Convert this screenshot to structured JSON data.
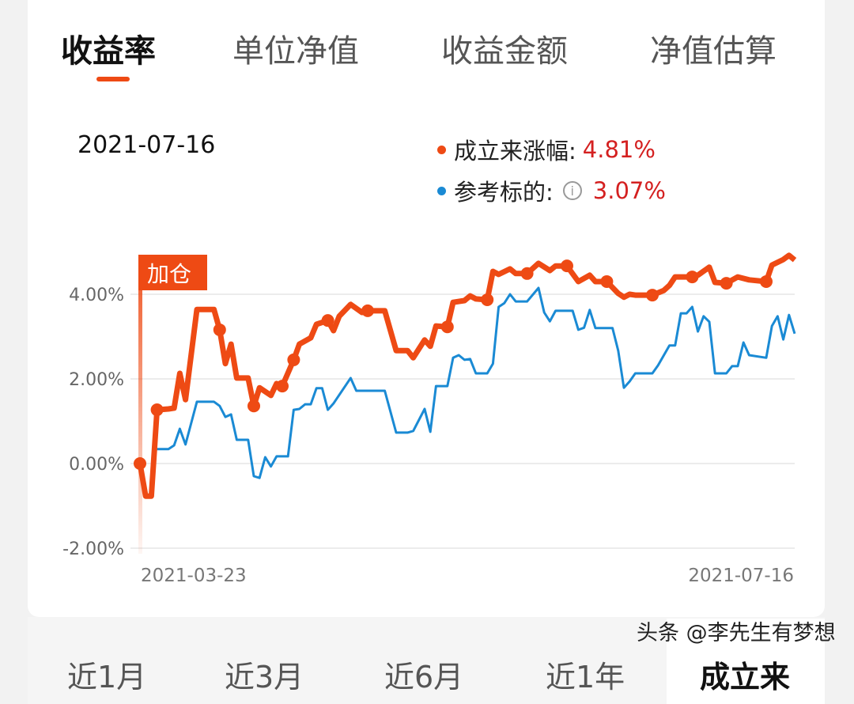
{
  "tabs": [
    "收益率",
    "单位净值",
    "收益金额",
    "净值估算"
  ],
  "active_tab": 0,
  "selected_date": "2021-07-16",
  "legend": [
    {
      "label": "成立来涨幅:",
      "value": "4.81%",
      "color": "#ee4a14"
    },
    {
      "label": "参考标的:",
      "value": "3.07%",
      "color": "#1a8ad4",
      "info_icon": "info-circle-icon"
    }
  ],
  "annotation": {
    "label": "加仓",
    "date": "2021-03-23"
  },
  "chart_data": {
    "type": "line",
    "x_range": [
      "2021-03-23",
      "2021-07-16"
    ],
    "x_ticks": [
      "2021-03-23",
      "2021-07-16"
    ],
    "y_ticks": [
      "4.00%",
      "2.00%",
      "0.00%",
      "-2.00%"
    ],
    "ylim": [
      -2,
      4.5
    ],
    "grid": true,
    "series": [
      {
        "name": "成立来涨幅",
        "color": "#ee4a14",
        "points": [
          [
            "2021-03-23",
            0
          ],
          [
            "2021-03-24",
            -0.77
          ],
          [
            "2021-03-25",
            -0.77
          ],
          [
            "2021-03-26",
            1.27
          ],
          [
            "2021-03-28",
            1.29
          ],
          [
            "2021-03-29",
            1.31
          ],
          [
            "2021-03-30",
            2.13
          ],
          [
            "2021-03-31",
            1.51
          ],
          [
            "2021-04-02",
            3.64
          ],
          [
            "2021-04-05",
            3.64
          ],
          [
            "2021-04-06",
            3.16
          ],
          [
            "2021-04-07",
            2.36
          ],
          [
            "2021-04-08",
            2.82
          ],
          [
            "2021-04-09",
            2.02
          ],
          [
            "2021-04-11",
            2.02
          ],
          [
            "2021-04-12",
            1.36
          ],
          [
            "2021-04-13",
            1.79
          ],
          [
            "2021-04-15",
            1.61
          ],
          [
            "2021-04-16",
            1.89
          ],
          [
            "2021-04-17",
            1.83
          ],
          [
            "2021-04-19",
            2.45
          ],
          [
            "2021-04-20",
            2.82
          ],
          [
            "2021-04-22",
            2.97
          ],
          [
            "2021-04-23",
            3.29
          ],
          [
            "2021-04-25",
            3.38
          ],
          [
            "2021-04-26",
            3.14
          ],
          [
            "2021-04-27",
            3.48
          ],
          [
            "2021-04-29",
            3.76
          ],
          [
            "2021-05-01",
            3.57
          ],
          [
            "2021-05-02",
            3.61
          ],
          [
            "2021-05-05",
            3.61
          ],
          [
            "2021-05-07",
            2.67
          ],
          [
            "2021-05-09",
            2.67
          ],
          [
            "2021-05-10",
            2.5
          ],
          [
            "2021-05-12",
            2.92
          ],
          [
            "2021-05-13",
            2.77
          ],
          [
            "2021-05-14",
            3.25
          ],
          [
            "2021-05-16",
            3.23
          ],
          [
            "2021-05-17",
            3.81
          ],
          [
            "2021-05-19",
            3.85
          ],
          [
            "2021-05-20",
            3.96
          ],
          [
            "2021-05-21",
            3.89
          ],
          [
            "2021-05-23",
            3.87
          ],
          [
            "2021-05-24",
            4.54
          ],
          [
            "2021-05-25",
            4.47
          ],
          [
            "2021-05-27",
            4.6
          ],
          [
            "2021-05-28",
            4.49
          ],
          [
            "2021-05-30",
            4.49
          ],
          [
            "2021-06-01",
            4.73
          ],
          [
            "2021-06-03",
            4.56
          ],
          [
            "2021-06-04",
            4.67
          ],
          [
            "2021-06-06",
            4.67
          ],
          [
            "2021-06-08",
            4.3
          ],
          [
            "2021-06-10",
            4.45
          ],
          [
            "2021-06-11",
            4.3
          ],
          [
            "2021-06-13",
            4.3
          ],
          [
            "2021-06-15",
            4.02
          ],
          [
            "2021-06-16",
            3.93
          ],
          [
            "2021-06-17",
            4.0
          ],
          [
            "2021-06-18",
            3.98
          ],
          [
            "2021-06-21",
            3.98
          ],
          [
            "2021-06-23",
            4.09
          ],
          [
            "2021-06-24",
            4.21
          ],
          [
            "2021-06-25",
            4.41
          ],
          [
            "2021-06-27",
            4.41
          ],
          [
            "2021-06-29",
            4.45
          ],
          [
            "2021-07-01",
            4.64
          ],
          [
            "2021-07-02",
            4.28
          ],
          [
            "2021-07-04",
            4.26
          ],
          [
            "2021-07-06",
            4.41
          ],
          [
            "2021-07-08",
            4.34
          ],
          [
            "2021-07-11",
            4.3
          ],
          [
            "2021-07-12",
            4.69
          ],
          [
            "2021-07-14",
            4.82
          ],
          [
            "2021-07-15",
            4.92
          ],
          [
            "2021-07-16",
            4.81
          ]
        ],
        "markers": [
          "2021-03-23",
          "2021-03-26",
          "2021-04-06",
          "2021-04-12",
          "2021-04-17",
          "2021-04-19",
          "2021-04-25",
          "2021-05-02",
          "2021-05-16",
          "2021-05-23",
          "2021-05-30",
          "2021-06-06",
          "2021-06-13",
          "2021-06-21",
          "2021-06-28",
          "2021-07-04",
          "2021-07-11"
        ]
      },
      {
        "name": "参考标的",
        "color": "#1a8ad4",
        "points": [
          [
            "2021-03-26",
            0.34
          ],
          [
            "2021-03-28",
            0.34
          ],
          [
            "2021-03-29",
            0.43
          ],
          [
            "2021-03-30",
            0.82
          ],
          [
            "2021-03-31",
            0.45
          ],
          [
            "2021-04-02",
            1.46
          ],
          [
            "2021-04-05",
            1.46
          ],
          [
            "2021-04-06",
            1.36
          ],
          [
            "2021-04-07",
            1.1
          ],
          [
            "2021-04-08",
            1.16
          ],
          [
            "2021-04-09",
            0.56
          ],
          [
            "2021-04-11",
            0.56
          ],
          [
            "2021-04-12",
            -0.3
          ],
          [
            "2021-04-13",
            -0.34
          ],
          [
            "2021-04-14",
            0.15
          ],
          [
            "2021-04-15",
            -0.07
          ],
          [
            "2021-04-16",
            0.17
          ],
          [
            "2021-04-18",
            0.17
          ],
          [
            "2021-04-19",
            1.27
          ],
          [
            "2021-04-20",
            1.29
          ],
          [
            "2021-04-21",
            1.4
          ],
          [
            "2021-04-22",
            1.4
          ],
          [
            "2021-04-23",
            1.78
          ],
          [
            "2021-04-24",
            1.78
          ],
          [
            "2021-04-25",
            1.27
          ],
          [
            "2021-04-26",
            1.42
          ],
          [
            "2021-04-29",
            2.02
          ],
          [
            "2021-04-30",
            1.72
          ],
          [
            "2021-05-05",
            1.72
          ],
          [
            "2021-05-07",
            0.73
          ],
          [
            "2021-05-09",
            0.73
          ],
          [
            "2021-05-10",
            0.77
          ],
          [
            "2021-05-12",
            1.29
          ],
          [
            "2021-05-13",
            0.75
          ],
          [
            "2021-05-14",
            1.83
          ],
          [
            "2021-05-16",
            1.83
          ],
          [
            "2021-05-17",
            2.5
          ],
          [
            "2021-05-18",
            2.56
          ],
          [
            "2021-05-19",
            2.45
          ],
          [
            "2021-05-20",
            2.47
          ],
          [
            "2021-05-21",
            2.13
          ],
          [
            "2021-05-23",
            2.13
          ],
          [
            "2021-05-24",
            2.36
          ],
          [
            "2021-05-25",
            3.7
          ],
          [
            "2021-05-26",
            3.79
          ],
          [
            "2021-05-27",
            4.0
          ],
          [
            "2021-05-28",
            3.83
          ],
          [
            "2021-05-30",
            3.83
          ],
          [
            "2021-06-01",
            4.15
          ],
          [
            "2021-06-02",
            3.57
          ],
          [
            "2021-06-03",
            3.36
          ],
          [
            "2021-06-04",
            3.61
          ],
          [
            "2021-06-07",
            3.61
          ],
          [
            "2021-06-08",
            3.16
          ],
          [
            "2021-06-09",
            3.21
          ],
          [
            "2021-06-10",
            3.63
          ],
          [
            "2021-06-11",
            3.2
          ],
          [
            "2021-06-14",
            3.2
          ],
          [
            "2021-06-15",
            2.67
          ],
          [
            "2021-06-16",
            1.79
          ],
          [
            "2021-06-17",
            1.94
          ],
          [
            "2021-06-18",
            2.13
          ],
          [
            "2021-06-21",
            2.13
          ],
          [
            "2021-06-22",
            2.32
          ],
          [
            "2021-06-24",
            2.79
          ],
          [
            "2021-06-25",
            2.79
          ],
          [
            "2021-06-26",
            3.55
          ],
          [
            "2021-06-27",
            3.55
          ],
          [
            "2021-06-28",
            3.7
          ],
          [
            "2021-06-29",
            3.12
          ],
          [
            "2021-06-30",
            3.48
          ],
          [
            "2021-07-01",
            3.35
          ],
          [
            "2021-07-02",
            2.13
          ],
          [
            "2021-07-04",
            2.13
          ],
          [
            "2021-07-05",
            2.3
          ],
          [
            "2021-07-06",
            2.3
          ],
          [
            "2021-07-07",
            2.86
          ],
          [
            "2021-07-08",
            2.56
          ],
          [
            "2021-07-11",
            2.5
          ],
          [
            "2021-07-12",
            3.25
          ],
          [
            "2021-07-13",
            3.48
          ],
          [
            "2021-07-14",
            2.93
          ],
          [
            "2021-07-15",
            3.51
          ],
          [
            "2021-07-16",
            3.07
          ]
        ]
      }
    ]
  },
  "ranges": [
    "近1月",
    "近3月",
    "近6月",
    "近1年",
    "成立来"
  ],
  "active_range": 4,
  "watermark": "头条 @李先生有梦想"
}
